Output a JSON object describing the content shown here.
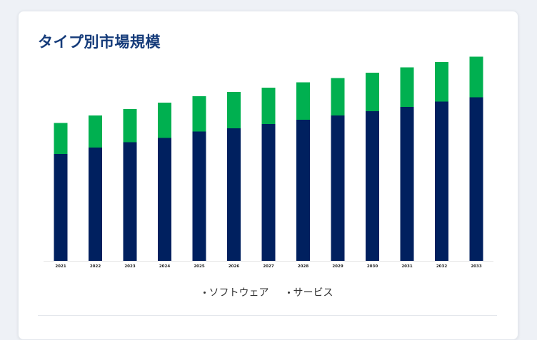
{
  "title": "タイプ別市場規模",
  "legend": {
    "software": "ソフトウェア",
    "services": "サービス"
  },
  "colors": {
    "software": "#00205f",
    "services": "#00b050",
    "title": "#153b7a"
  },
  "chart_data": {
    "type": "bar",
    "stacked": true,
    "categories": [
      "2021",
      "2022",
      "2023",
      "2024",
      "2025",
      "2026",
      "2027",
      "2028",
      "2029",
      "2030",
      "2031",
      "2032",
      "2033"
    ],
    "series": [
      {
        "name": "ソフトウェア",
        "values": [
          50,
          53,
          55.5,
          57.5,
          60.5,
          62,
          64,
          66,
          68,
          70,
          72,
          74.5,
          76.5
        ]
      },
      {
        "name": "サービス",
        "values": [
          14.5,
          15,
          15.5,
          16.5,
          16.5,
          17,
          17,
          17.5,
          17.5,
          18,
          18.5,
          18.5,
          19
        ]
      }
    ],
    "ylim": [
      0,
      100
    ],
    "grid": false,
    "legend_position": "bottom"
  }
}
